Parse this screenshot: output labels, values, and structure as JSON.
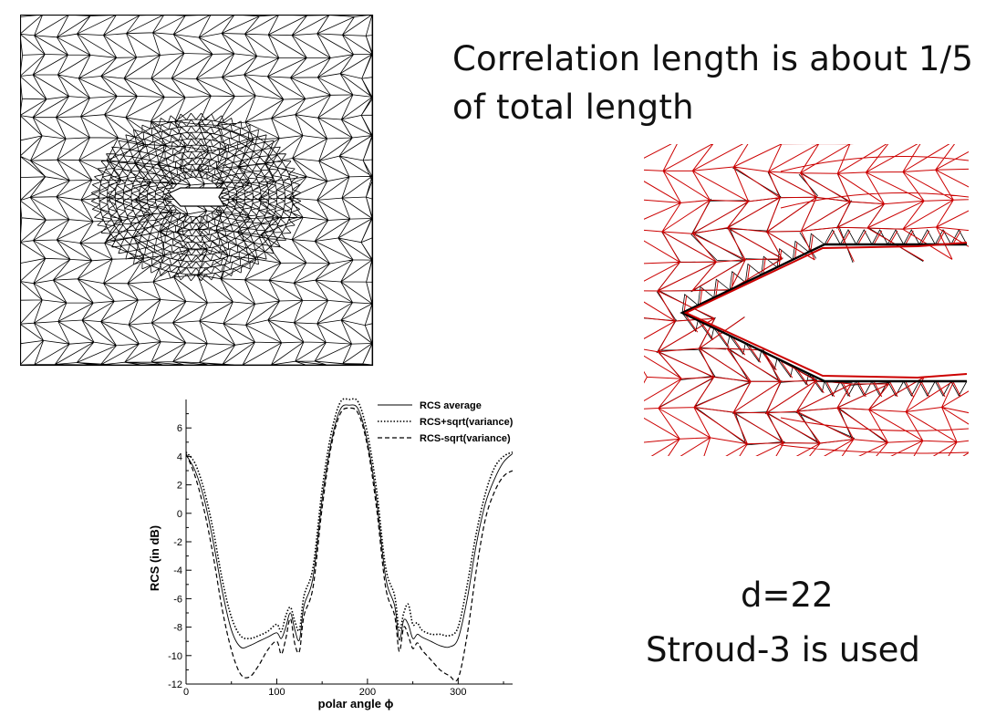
{
  "slide": {
    "heading_line1": "Correlation length is about 1/5",
    "heading_line2": "of total length",
    "param_d": "d=22",
    "param_rule": "Stroud-3 is used"
  },
  "mesh_colors": {
    "outer_mesh": "#000000",
    "nominal_mesh": "#000000",
    "perturbed_mesh": "#cc0000"
  },
  "chart_data": {
    "type": "line",
    "title": "",
    "xlabel": "polar angle ϕ",
    "ylabel": "RCS (in dB)",
    "xlim": [
      0,
      360
    ],
    "ylim": [
      -12,
      8
    ],
    "xticks": [
      0,
      100,
      200,
      300
    ],
    "yticks": [
      -12,
      -10,
      -8,
      -6,
      -4,
      -2,
      0,
      2,
      4,
      6
    ],
    "legend_position": "top-right",
    "grid": false,
    "x": [
      0,
      10,
      20,
      30,
      40,
      50,
      60,
      70,
      80,
      90,
      100,
      105,
      110,
      115,
      120,
      125,
      130,
      140,
      150,
      160,
      170,
      180,
      190,
      200,
      210,
      220,
      230,
      235,
      240,
      245,
      250,
      255,
      260,
      270,
      280,
      290,
      300,
      310,
      320,
      330,
      340,
      350,
      360
    ],
    "series": [
      {
        "name": "RCS average",
        "style": "solid",
        "values": [
          4.1,
          3.0,
          1.0,
          -2.0,
          -5.5,
          -8.2,
          -9.4,
          -9.3,
          -9.0,
          -8.7,
          -8.4,
          -8.8,
          -8.0,
          -7.0,
          -8.2,
          -8.9,
          -6.5,
          -4.5,
          1.0,
          5.0,
          7.3,
          7.6,
          7.3,
          5.0,
          1.0,
          -4.5,
          -6.5,
          -8.9,
          -7.5,
          -7.8,
          -8.8,
          -8.5,
          -8.7,
          -9.0,
          -9.3,
          -9.4,
          -8.8,
          -6.0,
          -2.2,
          0.7,
          2.4,
          3.6,
          4.2
        ]
      },
      {
        "name": "RCS+sqrt(variance)",
        "style": "dotted",
        "values": [
          4.3,
          3.5,
          1.6,
          -1.2,
          -4.7,
          -7.3,
          -8.6,
          -8.8,
          -8.6,
          -8.3,
          -7.8,
          -8.3,
          -7.2,
          -6.6,
          -7.6,
          -8.2,
          -5.8,
          -3.8,
          1.7,
          5.6,
          7.8,
          8.0,
          7.8,
          5.6,
          1.7,
          -3.8,
          -5.8,
          -8.2,
          -7.0,
          -6.4,
          -7.8,
          -7.7,
          -8.2,
          -8.5,
          -8.5,
          -8.6,
          -8.0,
          -5.0,
          -1.4,
          1.4,
          3.2,
          4.0,
          4.3
        ]
      },
      {
        "name": "RCS-sqrt(variance)",
        "style": "dashed",
        "values": [
          4.2,
          2.6,
          0.2,
          -3.0,
          -6.8,
          -9.6,
          -11.3,
          -11.5,
          -10.7,
          -9.6,
          -9.0,
          -9.9,
          -8.8,
          -7.4,
          -9.2,
          -9.7,
          -7.2,
          -5.2,
          0.4,
          4.7,
          7.0,
          7.4,
          7.0,
          4.7,
          0.4,
          -5.2,
          -7.2,
          -9.7,
          -8.0,
          -8.6,
          -9.5,
          -9.1,
          -9.6,
          -10.3,
          -11.0,
          -11.4,
          -11.6,
          -8.5,
          -4.0,
          -0.4,
          1.5,
          2.6,
          3.0
        ]
      }
    ]
  }
}
